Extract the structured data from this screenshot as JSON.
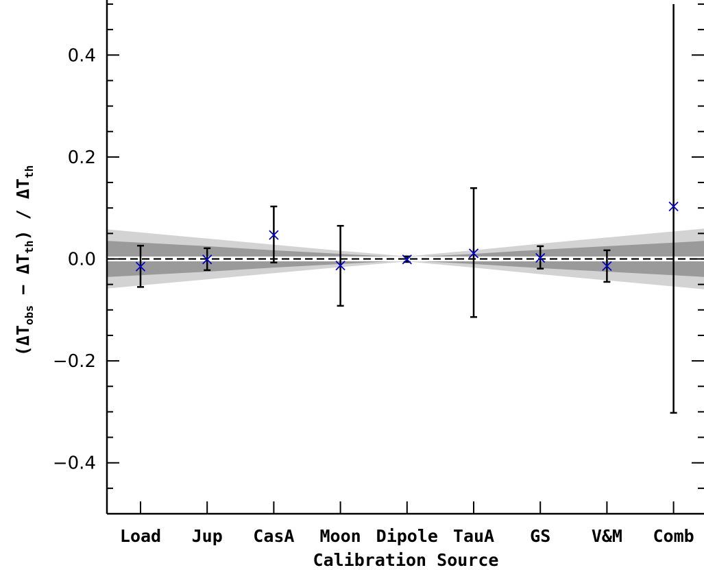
{
  "chart_data": {
    "type": "scatter",
    "title": "",
    "xlabel": "Calibration Source",
    "ylabel": {
      "open": "(",
      "delta": "Δ",
      "t1": "T",
      "sub1": "obs",
      "minus": " − ",
      "t2": "T",
      "sub2": "th",
      "close": ") / ",
      "t3": "T",
      "sub3": "th"
    },
    "categories": [
      "Load",
      "Jup",
      "CasA",
      "Moon",
      "Dipole",
      "TauA",
      "GS",
      "V&M",
      "Comb"
    ],
    "ylim": [
      -0.5,
      0.5
    ],
    "yticks": [
      -0.4,
      -0.2,
      0.0,
      0.2,
      0.4
    ],
    "ytick_labels": [
      "−0.4",
      "−0.2",
      "0.0",
      "0.2",
      "0.4"
    ],
    "series": [
      {
        "marker": "x",
        "color": "#0000cc",
        "values": [
          -0.015,
          -0.001,
          0.047,
          -0.013,
          -0.001,
          0.011,
          0.002,
          -0.014,
          0.103
        ],
        "err_low": [
          -0.055,
          -0.022,
          -0.007,
          -0.092,
          -0.006,
          -0.114,
          -0.019,
          -0.045,
          -0.302
        ],
        "err_high": [
          0.026,
          0.021,
          0.103,
          0.065,
          0.005,
          0.139,
          0.025,
          0.017,
          0.5
        ]
      }
    ],
    "bands": [
      {
        "name": "outer",
        "color": "#d3d3d3",
        "half_width": [
          0.052,
          0.04,
          0.028,
          0.016,
          0.005,
          0.017,
          0.03,
          0.042,
          0.054
        ]
      },
      {
        "name": "inner",
        "color": "#9a9a9a",
        "half_width": [
          0.032,
          0.025,
          0.017,
          0.01,
          0.003,
          0.01,
          0.018,
          0.025,
          0.032
        ]
      }
    ],
    "zero_line": {
      "style": "dashed",
      "color": "#000000"
    },
    "grid": false,
    "legend": "none"
  }
}
